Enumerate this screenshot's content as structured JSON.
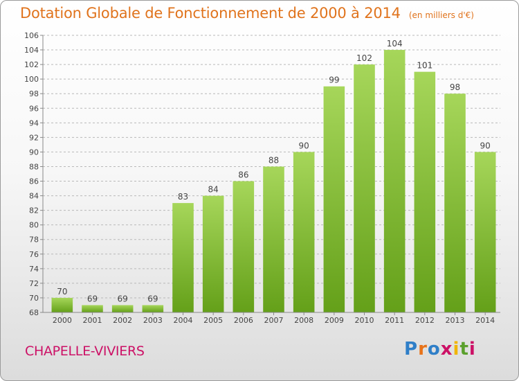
{
  "header": {
    "title": "Dotation Globale de Fonctionnement de 2000 à 2014",
    "subtitle": "(en milliers d'€)"
  },
  "commune_name": "CHAPELLE-VIVIERS",
  "logo": {
    "text": "Proxiti",
    "letters": [
      "P",
      "r",
      "o",
      "x",
      "i",
      "t",
      "i"
    ],
    "colors": [
      "#2f7fc8",
      "#e8731a",
      "#2f7fc8",
      "#cc1166",
      "#f0b400",
      "#5aa02c",
      "#cc1166"
    ]
  },
  "colors": {
    "title": "#e0731c",
    "bar_light": "#a6d65a",
    "bar_dark": "#64a019",
    "commune": "#cc1166"
  },
  "chart_data": {
    "type": "bar",
    "title": "Dotation Globale de Fonctionnement de 2000 à 2014",
    "subtitle": "(en milliers d'€)",
    "categories": [
      "2000",
      "2001",
      "2002",
      "2003",
      "2004",
      "2005",
      "2006",
      "2007",
      "2008",
      "2009",
      "2010",
      "2011",
      "2012",
      "2013",
      "2014"
    ],
    "values": [
      70,
      69,
      69,
      69,
      83,
      84,
      86,
      88,
      90,
      99,
      102,
      104,
      101,
      98,
      90
    ],
    "ylim": [
      68,
      106
    ],
    "ytick_step": 2,
    "grid": true,
    "xlabel": "",
    "ylabel": ""
  }
}
